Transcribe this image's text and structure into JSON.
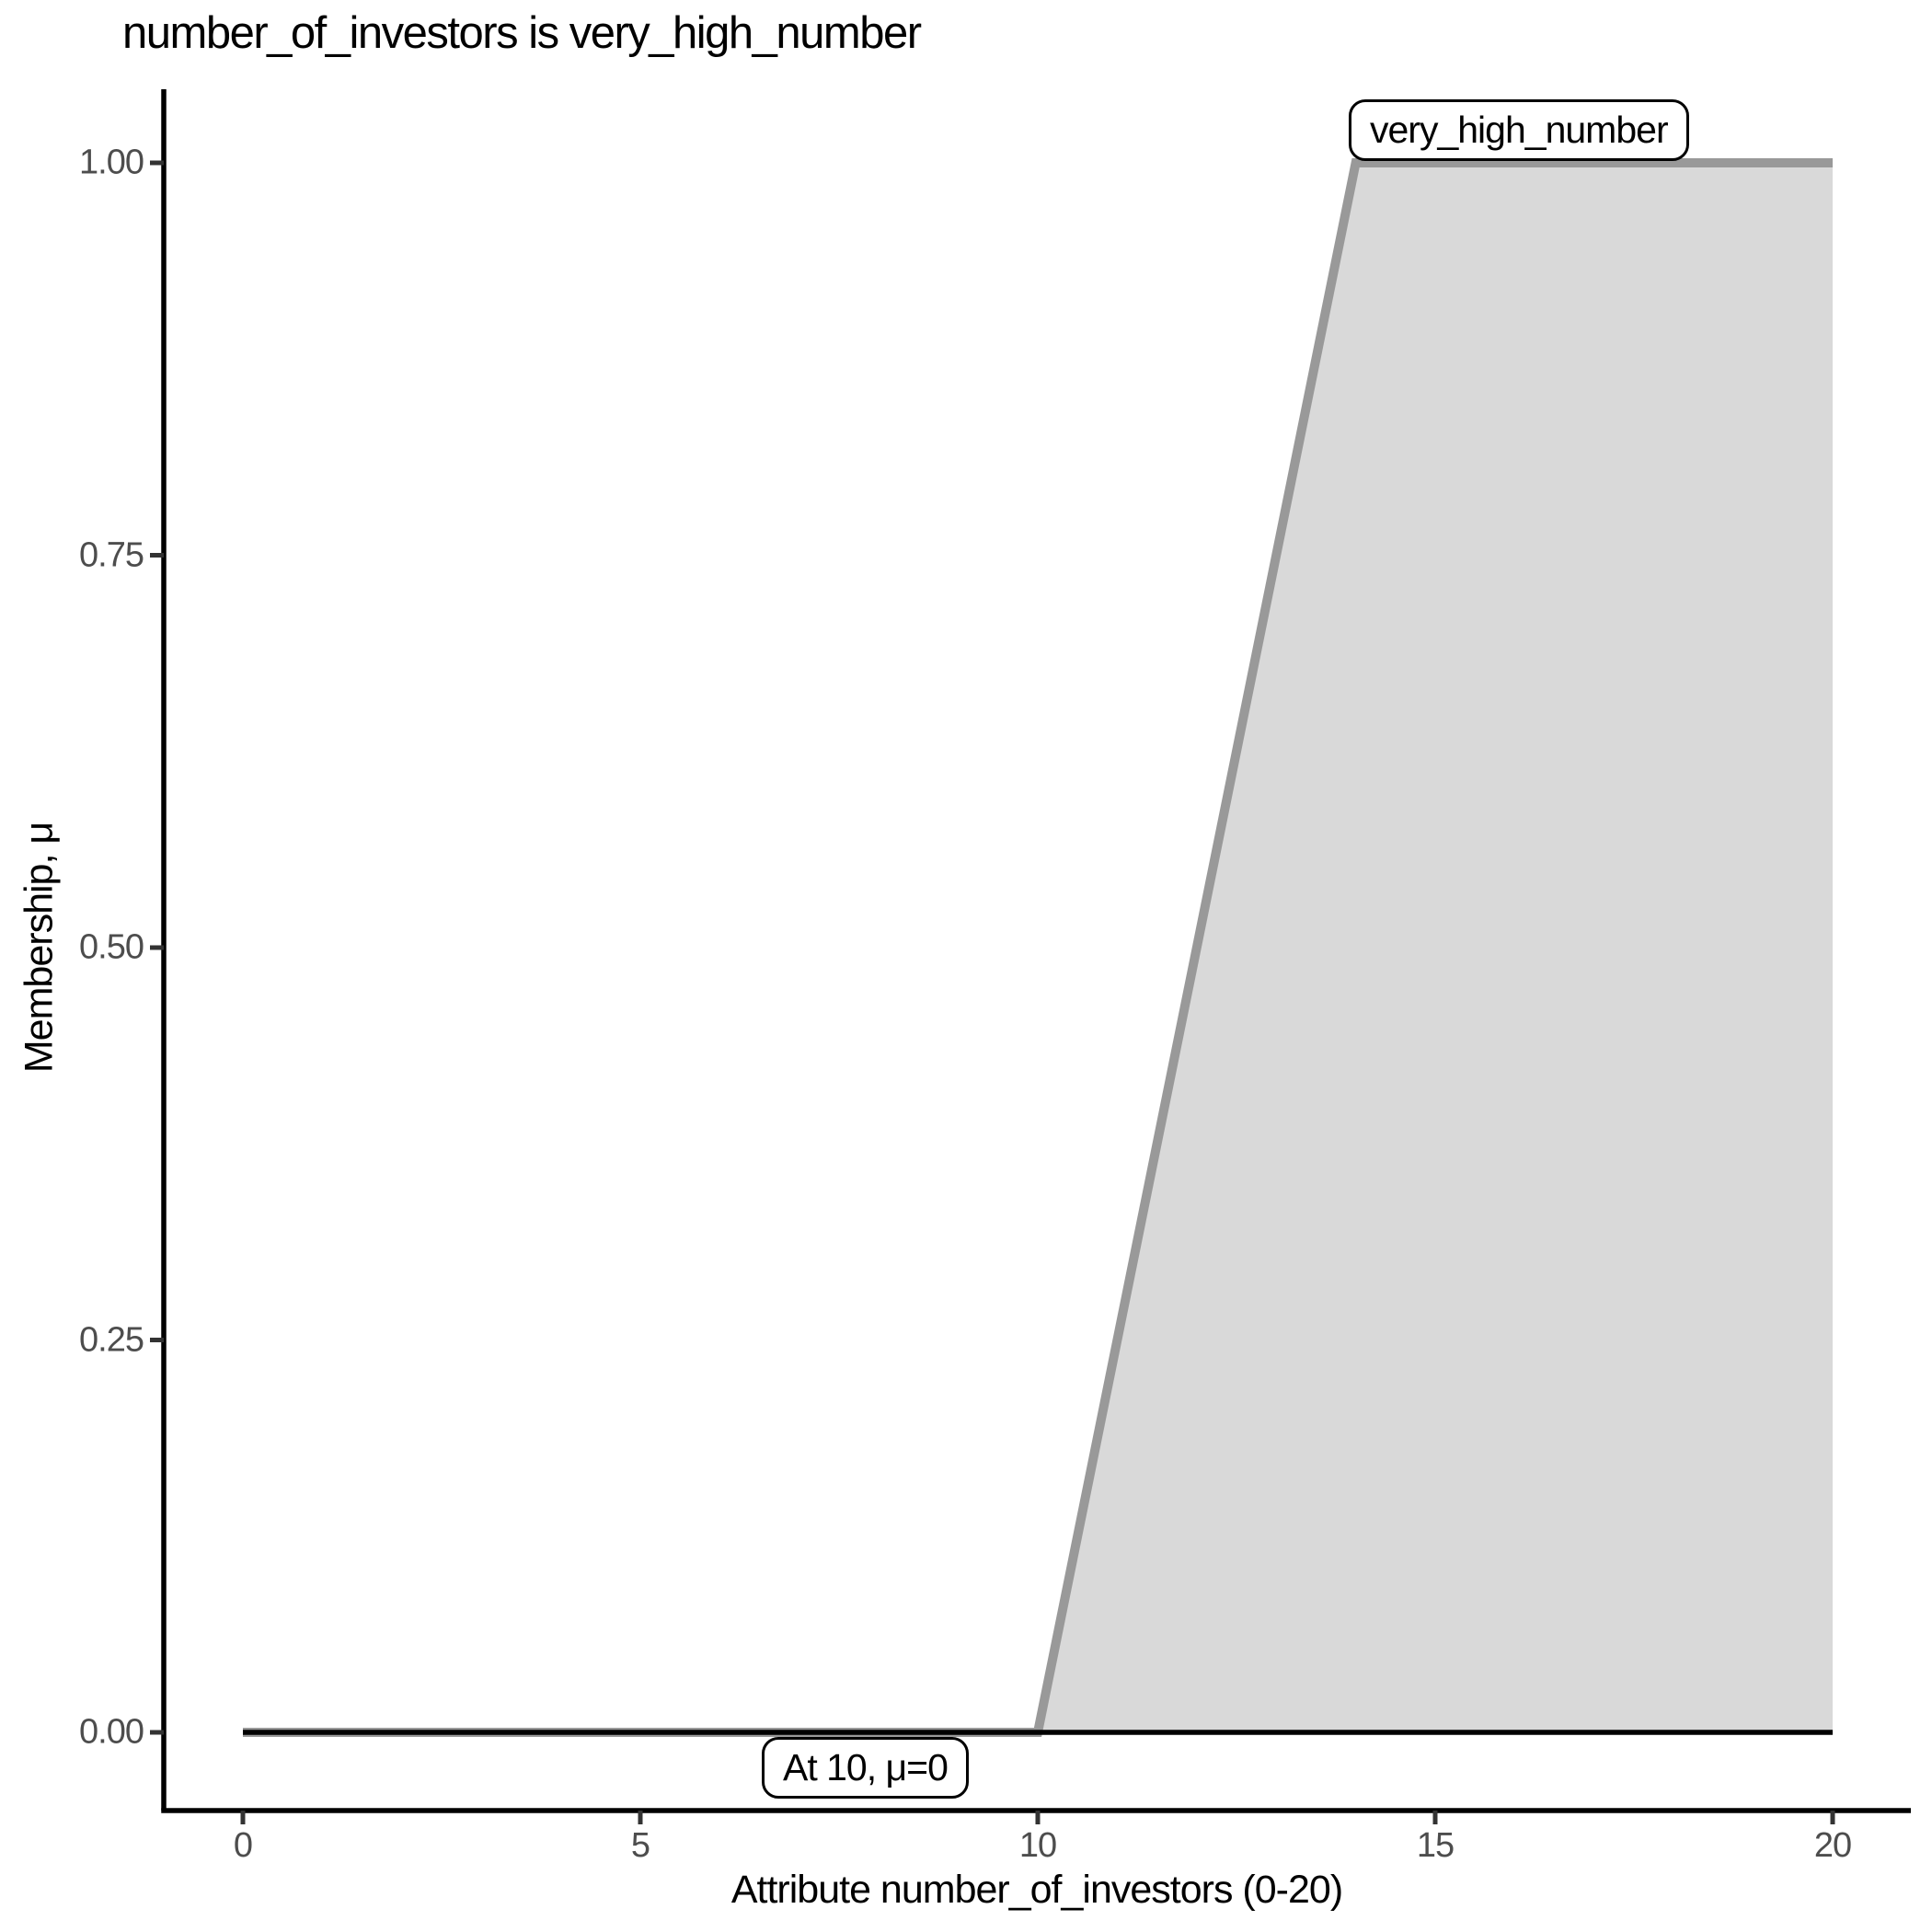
{
  "title": "number_of_investors is very_high_number",
  "chart_data": {
    "type": "area",
    "title": "number_of_investors is very_high_number",
    "xlabel": "Attribute number_of_investors (0-20)",
    "ylabel": "Membership, μ",
    "xlim": [
      0,
      20
    ],
    "ylim": [
      0,
      1
    ],
    "x_ticks": [
      0,
      5,
      10,
      15,
      20
    ],
    "x_tick_labels": [
      "0",
      "5",
      "10",
      "15",
      "20"
    ],
    "y_ticks": [
      0,
      0.25,
      0.5,
      0.75,
      1
    ],
    "y_tick_labels": [
      "0.00",
      "0.25",
      "0.50",
      "0.75",
      "1.00"
    ],
    "grid": "off",
    "legend_position": "none",
    "series": [
      {
        "name": "very_high_number",
        "shape": "trapezoid",
        "points": [
          [
            0,
            0
          ],
          [
            10,
            0
          ],
          [
            14,
            1
          ],
          [
            20,
            1
          ]
        ],
        "fill": true
      }
    ],
    "baseline": {
      "y": 0,
      "x_range": [
        0,
        20
      ]
    },
    "annotations": [
      {
        "text": "very_high_number",
        "x": 14,
        "y": 1,
        "placement": "above-top-of-ramp"
      },
      {
        "text": "At 10, μ=0",
        "x": 8.2,
        "y": 0,
        "placement": "below-baseline"
      }
    ],
    "colors": {
      "area_fill": "#d9d9d9",
      "membership_line": "#999999",
      "baseline": "#000000",
      "axis_line": "#000000",
      "tick_mark": "#333333",
      "tick_label": "#4d4d4d",
      "text": "#000000",
      "annotation_bg": "#ffffff",
      "annotation_border": "#000000"
    }
  }
}
